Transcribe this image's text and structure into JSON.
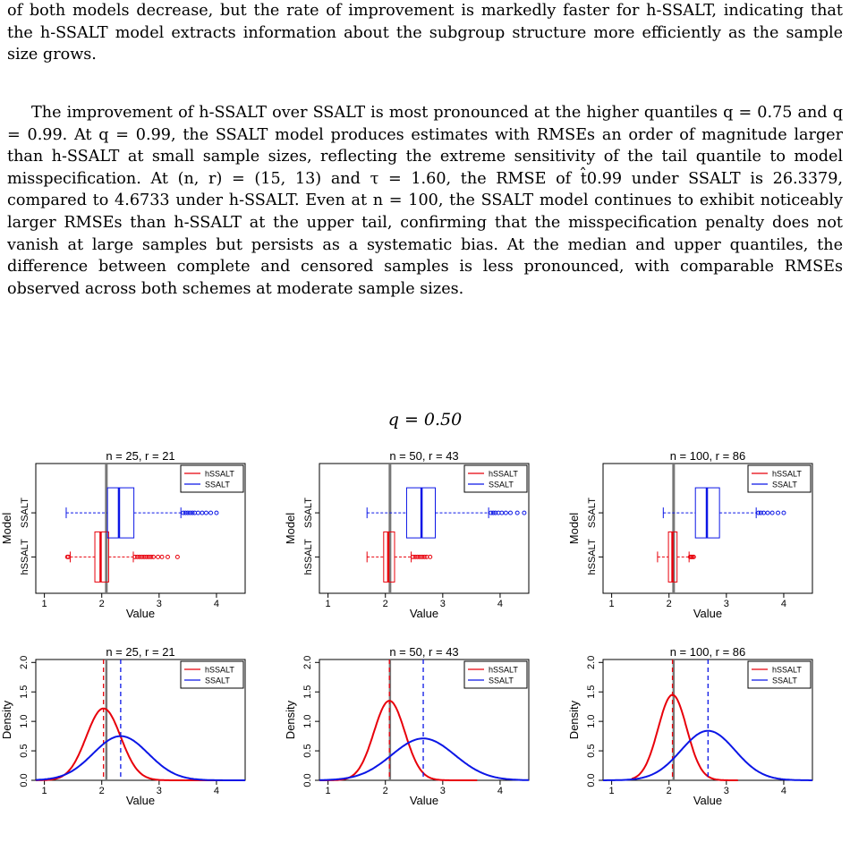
{
  "text": {
    "p1": "of both models decrease, but the rate of improvement is markedly faster for h-SSALT, indicating that the h-SSALT model extracts information about the subgroup structure more efficiently as the sample size grows.",
    "p2": "The improvement of h-SSALT over SSALT is most pronounced at the higher quantiles q = 0.75 and q = 0.99. At q = 0.99, the SSALT model produces estimates with RMSEs an order of magnitude larger than h-SSALT at small sample sizes, reflecting the extreme sensitivity of the tail quantile to model misspecification. At (n, r) = (15, 13) and τ = 1.60, the RMSE of t̂0.99 under SSALT is 26.3379, compared to 4.6733 under h-SSALT. Even at n = 100, the SSALT model continues to exhibit noticeably larger RMSEs than h-SSALT at the upper tail, confirming that the misspecification penalty does not vanish at large samples but persists as a systematic bias. At the median and upper quantiles, the difference between complete and censored samples is less pronounced, with comparable RMSEs observed across both schemes at moderate sample sizes."
  },
  "figure_title": "q = 0.50",
  "colors": {
    "hSSALT": "#e8000b",
    "SSALT": "#0b16e6",
    "true": "#777777"
  },
  "chart_data": [
    {
      "type": "boxplot",
      "title": "n = 25, r = 21",
      "xlabel": "Value",
      "ylabel": "Model",
      "xlim": [
        0.85,
        4.5
      ],
      "xticks": [
        "1",
        "2",
        "3",
        "4"
      ],
      "true_value": 2.08,
      "categories": [
        "hSSALT",
        "SSALT"
      ],
      "legend": {
        "position": "top-right",
        "entries": [
          "hSSALT",
          "SSALT"
        ]
      },
      "series": [
        {
          "name": "hSSALT",
          "min": 1.45,
          "q1": 1.88,
          "median": 1.98,
          "q3": 2.12,
          "max": 2.55,
          "outliers": [
            1.4,
            1.42,
            2.58,
            2.62,
            2.66,
            2.7,
            2.74,
            2.78,
            2.82,
            2.86,
            2.9,
            2.98,
            3.05,
            3.15,
            3.32
          ]
        },
        {
          "name": "SSALT",
          "min": 1.38,
          "q1": 2.1,
          "median": 2.3,
          "q3": 2.56,
          "max": 3.38,
          "outliers": [
            3.42,
            3.46,
            3.5,
            3.54,
            3.58,
            3.62,
            3.68,
            3.75,
            3.82,
            3.9,
            4.0
          ]
        }
      ]
    },
    {
      "type": "boxplot",
      "title": "n = 50, r = 43",
      "xlabel": "Value",
      "ylabel": "Model",
      "xlim": [
        0.85,
        4.5
      ],
      "xticks": [
        "1",
        "2",
        "3",
        "4"
      ],
      "true_value": 2.08,
      "categories": [
        "hSSALT",
        "SSALT"
      ],
      "legend": {
        "position": "top-right",
        "entries": [
          "hSSALT",
          "SSALT"
        ]
      },
      "series": [
        {
          "name": "hSSALT",
          "min": 1.68,
          "q1": 1.97,
          "median": 2.05,
          "q3": 2.16,
          "max": 2.45,
          "outliers": [
            2.48,
            2.52,
            2.56,
            2.6,
            2.64,
            2.68,
            2.72,
            2.78
          ]
        },
        {
          "name": "SSALT",
          "min": 1.68,
          "q1": 2.37,
          "median": 2.63,
          "q3": 2.87,
          "max": 3.8,
          "outliers": [
            3.84,
            3.88,
            3.92,
            3.97,
            4.03,
            4.1,
            4.18,
            4.3,
            4.42
          ]
        }
      ]
    },
    {
      "type": "boxplot",
      "title": "n = 100, r = 86",
      "xlabel": "Value",
      "ylabel": "Model",
      "xlim": [
        0.85,
        4.5
      ],
      "xticks": [
        "1",
        "2",
        "3",
        "4"
      ],
      "true_value": 2.08,
      "categories": [
        "hSSALT",
        "SSALT"
      ],
      "legend": {
        "position": "top-right",
        "entries": [
          "hSSALT",
          "SSALT"
        ]
      },
      "series": [
        {
          "name": "hSSALT",
          "min": 1.8,
          "q1": 1.99,
          "median": 2.06,
          "q3": 2.14,
          "max": 2.35,
          "outliers": [
            2.37,
            2.39,
            2.41,
            2.43
          ]
        },
        {
          "name": "SSALT",
          "min": 1.9,
          "q1": 2.46,
          "median": 2.66,
          "q3": 2.88,
          "max": 3.52,
          "outliers": [
            3.56,
            3.6,
            3.65,
            3.72,
            3.8,
            3.9,
            4.0
          ]
        }
      ]
    },
    {
      "type": "line",
      "title": "n = 25, r = 21",
      "xlabel": "Value",
      "ylabel": "Density",
      "xlim": [
        0.85,
        4.5
      ],
      "ylim": [
        0,
        2.05
      ],
      "xticks": [
        "1",
        "2",
        "3",
        "4"
      ],
      "yticks": [
        "0.0",
        "0.5",
        "1.0",
        "1.5",
        "2.0"
      ],
      "true_value": 2.08,
      "legend": {
        "position": "top-right",
        "entries": [
          "hSSALT",
          "SSALT"
        ]
      },
      "series": [
        {
          "name": "hSSALT",
          "mean": 2.03,
          "peak": 1.22,
          "sd": 0.3,
          "means_line": 2.03,
          "range": [
            0.85,
            4.5
          ]
        },
        {
          "name": "SSALT",
          "mean": 2.33,
          "peak": 0.75,
          "sd": 0.48,
          "means_line": 2.33,
          "range": [
            0.85,
            4.5
          ]
        }
      ]
    },
    {
      "type": "line",
      "title": "n = 50, r = 43",
      "xlabel": "Value",
      "ylabel": "Density",
      "xlim": [
        0.85,
        4.5
      ],
      "ylim": [
        0,
        2.05
      ],
      "xticks": [
        "1",
        "2",
        "3",
        "4"
      ],
      "yticks": [
        "0.0",
        "0.5",
        "1.0",
        "1.5",
        "2.0"
      ],
      "true_value": 2.08,
      "legend": {
        "position": "top-right",
        "entries": [
          "hSSALT",
          "SSALT"
        ]
      },
      "series": [
        {
          "name": "hSSALT",
          "mean": 2.07,
          "peak": 1.35,
          "sd": 0.27,
          "means_line": 2.07,
          "range": [
            0.85,
            3.6
          ]
        },
        {
          "name": "SSALT",
          "mean": 2.66,
          "peak": 0.71,
          "sd": 0.55,
          "means_line": 2.66,
          "range": [
            0.85,
            4.5
          ]
        }
      ]
    },
    {
      "type": "line",
      "title": "n = 100, r = 86",
      "xlabel": "Value",
      "ylabel": "Density",
      "xlim": [
        0.85,
        4.5
      ],
      "ylim": [
        0,
        2.05
      ],
      "xticks": [
        "1",
        "2",
        "3",
        "4"
      ],
      "yticks": [
        "0.0",
        "0.5",
        "1.0",
        "1.5",
        "2.0"
      ],
      "true_value": 2.08,
      "legend": {
        "position": "top-right",
        "entries": [
          "hSSALT",
          "SSALT"
        ]
      },
      "series": [
        {
          "name": "hSSALT",
          "mean": 2.06,
          "peak": 1.45,
          "sd": 0.25,
          "means_line": 2.06,
          "range": [
            1.35,
            3.2
          ]
        },
        {
          "name": "SSALT",
          "mean": 2.68,
          "peak": 0.84,
          "sd": 0.47,
          "means_line": 2.68,
          "range": [
            0.85,
            4.5
          ]
        }
      ]
    }
  ]
}
